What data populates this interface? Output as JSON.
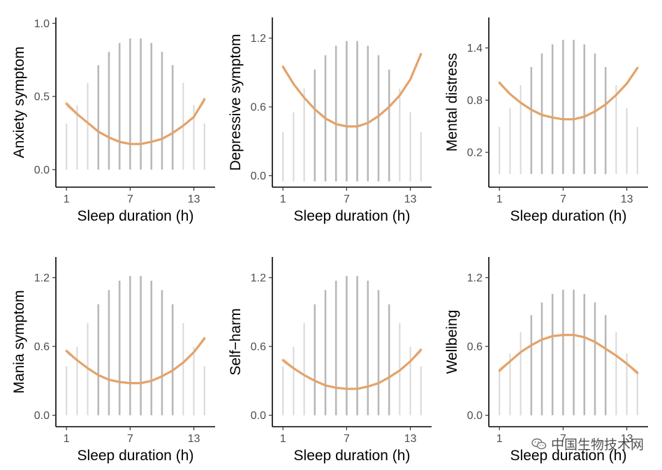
{
  "chart_data": [
    {
      "type": "scatter",
      "xlabel": "Sleep duration (h)",
      "ylabel": "Anxiety symptom",
      "xticks": [
        1,
        7,
        13
      ],
      "yticks": [
        "0.0",
        "0.5",
        "1.0"
      ],
      "xlim": [
        0,
        15
      ],
      "ylim": [
        -0.12,
        1.04
      ],
      "fit": {
        "x": [
          1,
          2,
          3,
          4,
          5,
          6,
          7,
          8,
          9,
          10,
          11,
          12,
          13,
          14
        ],
        "y": [
          0.45,
          0.38,
          0.32,
          0.26,
          0.22,
          0.19,
          0.175,
          0.175,
          0.19,
          0.21,
          0.25,
          0.3,
          0.36,
          0.48
        ]
      },
      "points": {
        "x_min": 1,
        "x_max": 14,
        "note_range_y": [
          0.0,
          0.9
        ]
      }
    },
    {
      "type": "scatter",
      "xlabel": "Sleep duration (h)",
      "ylabel": "Depressive symptom",
      "xticks": [
        1,
        7,
        13
      ],
      "yticks": [
        "0.0",
        "0.6",
        "1.2"
      ],
      "xlim": [
        0,
        15
      ],
      "ylim": [
        -0.1,
        1.38
      ],
      "fit": {
        "x": [
          1,
          2,
          3,
          4,
          5,
          6,
          7,
          8,
          9,
          10,
          11,
          12,
          13,
          14
        ],
        "y": [
          0.95,
          0.8,
          0.68,
          0.58,
          0.5,
          0.45,
          0.43,
          0.43,
          0.46,
          0.52,
          0.6,
          0.7,
          0.84,
          1.06
        ]
      },
      "points": {
        "x_min": 1,
        "x_max": 14,
        "note_range_y": [
          -0.05,
          1.18
        ]
      }
    },
    {
      "type": "scatter",
      "xlabel": "Sleep duration (h)",
      "ylabel": "Mental distress",
      "xticks": [
        1,
        7,
        13
      ],
      "yticks": [
        "0.2",
        "0.8",
        "1.4"
      ],
      "xlim": [
        0,
        15
      ],
      "ylim": [
        -0.2,
        1.75
      ],
      "fit": {
        "x": [
          1,
          2,
          3,
          4,
          5,
          6,
          7,
          8,
          9,
          10,
          11,
          12,
          13,
          14
        ],
        "y": [
          1.0,
          0.87,
          0.77,
          0.69,
          0.63,
          0.6,
          0.58,
          0.58,
          0.61,
          0.67,
          0.75,
          0.86,
          0.99,
          1.17
        ]
      },
      "points": {
        "x_min": 1,
        "x_max": 14,
        "note_range_y": [
          -0.05,
          1.5
        ]
      }
    },
    {
      "type": "scatter",
      "xlabel": "Sleep duration (h)",
      "ylabel": "Mania symptom",
      "xticks": [
        1,
        7,
        13
      ],
      "yticks": [
        "0.0",
        "0.6",
        "1.2"
      ],
      "xlim": [
        0,
        15
      ],
      "ylim": [
        -0.1,
        1.38
      ],
      "fit": {
        "x": [
          1,
          2,
          3,
          4,
          5,
          6,
          7,
          8,
          9,
          10,
          11,
          12,
          13,
          14
        ],
        "y": [
          0.56,
          0.48,
          0.41,
          0.35,
          0.31,
          0.29,
          0.28,
          0.28,
          0.3,
          0.34,
          0.39,
          0.46,
          0.55,
          0.67
        ]
      },
      "points": {
        "x_min": 1,
        "x_max": 14,
        "note_range_y": [
          0.0,
          1.22
        ]
      }
    },
    {
      "type": "scatter",
      "xlabel": "Sleep duration (h)",
      "ylabel": "Self−harm",
      "xticks": [
        1,
        7,
        13
      ],
      "yticks": [
        "0.0",
        "0.6",
        "1.2"
      ],
      "xlim": [
        0,
        15
      ],
      "ylim": [
        -0.1,
        1.38
      ],
      "fit": {
        "x": [
          1,
          2,
          3,
          4,
          5,
          6,
          7,
          8,
          9,
          10,
          11,
          12,
          13,
          14
        ],
        "y": [
          0.48,
          0.41,
          0.35,
          0.3,
          0.26,
          0.24,
          0.23,
          0.23,
          0.25,
          0.28,
          0.33,
          0.39,
          0.47,
          0.57
        ]
      },
      "points": {
        "x_min": 1,
        "x_max": 14,
        "note_range_y": [
          0.0,
          1.22
        ]
      }
    },
    {
      "type": "scatter",
      "xlabel": "Sleep duration (h)",
      "ylabel": "Wellbeing",
      "xticks": [
        1,
        7,
        13
      ],
      "yticks": [
        "0.0",
        "0.6",
        "1.2"
      ],
      "xlim": [
        0,
        15
      ],
      "ylim": [
        -0.1,
        1.38
      ],
      "fit": {
        "x": [
          1,
          2,
          3,
          4,
          5,
          6,
          7,
          8,
          9,
          10,
          11,
          12,
          13,
          14
        ],
        "y": [
          0.39,
          0.47,
          0.55,
          0.61,
          0.66,
          0.69,
          0.7,
          0.7,
          0.68,
          0.64,
          0.58,
          0.52,
          0.45,
          0.37
        ]
      },
      "points": {
        "x_min": 1,
        "x_max": 14,
        "note_range_y": [
          0.0,
          1.1
        ]
      }
    }
  ],
  "watermark": {
    "text": "中国生物技术网",
    "icon": "wechat-icon"
  }
}
